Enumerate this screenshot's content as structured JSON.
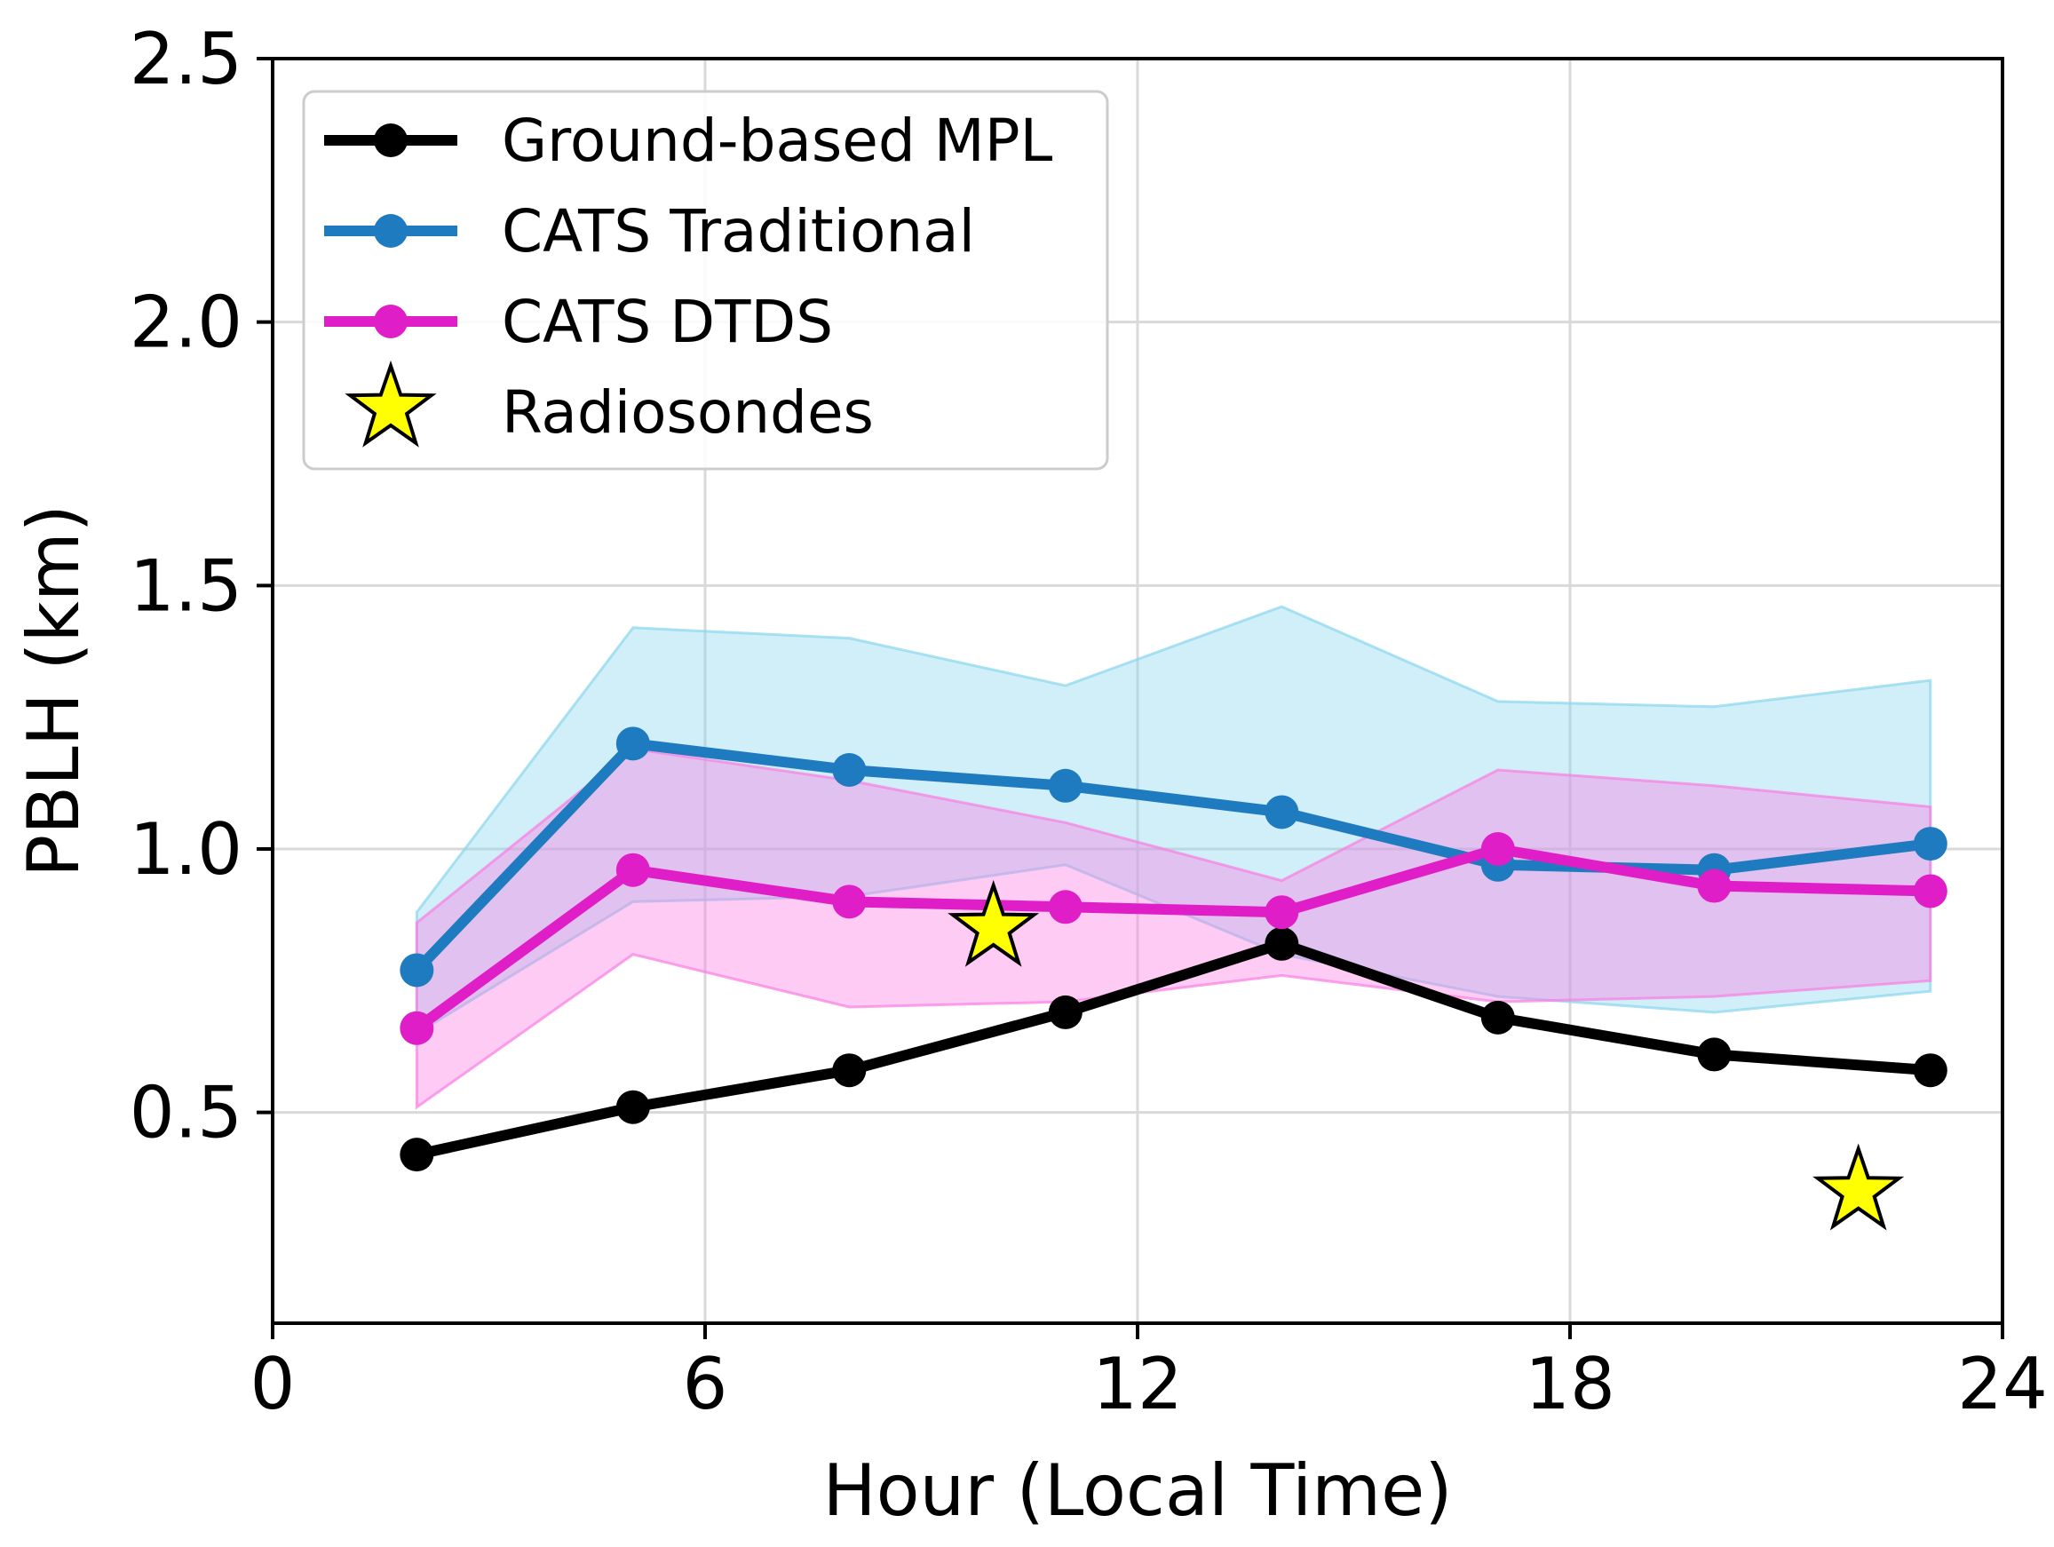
{
  "chart_data": {
    "type": "line",
    "title": "",
    "xlabel": "Hour (Local Time)",
    "ylabel": "PBLH (km)",
    "xlim": [
      0,
      24
    ],
    "ylim": [
      0.1,
      2.5
    ],
    "xticks": [
      0,
      6,
      12,
      18,
      24
    ],
    "xtick_labels": [
      "0",
      "6",
      "12",
      "18",
      "24"
    ],
    "yticks": [
      0.5,
      1.0,
      1.5,
      2.0,
      2.5
    ],
    "ytick_labels": [
      "0.5",
      "1.0",
      "1.5",
      "2.0",
      "2.5"
    ],
    "grid": true,
    "legend_position": "top-left",
    "x": [
      2,
      5,
      8,
      11,
      14,
      17,
      20,
      23
    ],
    "series": [
      {
        "name": "Ground-based MPL",
        "color": "#000000",
        "values": [
          0.42,
          0.51,
          0.58,
          0.69,
          0.82,
          0.68,
          0.61,
          0.58
        ]
      },
      {
        "name": "CATS Traditional",
        "color": "#1f7bbf",
        "band_color": "#8ad6ee",
        "values": [
          0.77,
          1.2,
          1.15,
          1.12,
          1.07,
          0.97,
          0.96,
          1.01
        ],
        "band_lower": [
          0.65,
          0.9,
          0.91,
          0.97,
          0.8,
          0.72,
          0.69,
          0.73
        ],
        "band_upper": [
          0.88,
          1.42,
          1.4,
          1.31,
          1.46,
          1.28,
          1.27,
          1.32
        ]
      },
      {
        "name": "CATS DTDS",
        "color": "#e01ec8",
        "band_color": "#f97ee2",
        "values": [
          0.66,
          0.96,
          0.9,
          0.89,
          0.88,
          1.0,
          0.93,
          0.92
        ],
        "band_lower": [
          0.51,
          0.8,
          0.7,
          0.71,
          0.76,
          0.71,
          0.72,
          0.75
        ],
        "band_upper": [
          0.86,
          1.19,
          1.13,
          1.05,
          0.94,
          1.15,
          1.12,
          1.08
        ]
      }
    ],
    "radiosondes": {
      "name": "Radiosondes",
      "color": "#ffff00",
      "x": [
        10,
        22
      ],
      "y": [
        0.85,
        0.35
      ]
    }
  }
}
